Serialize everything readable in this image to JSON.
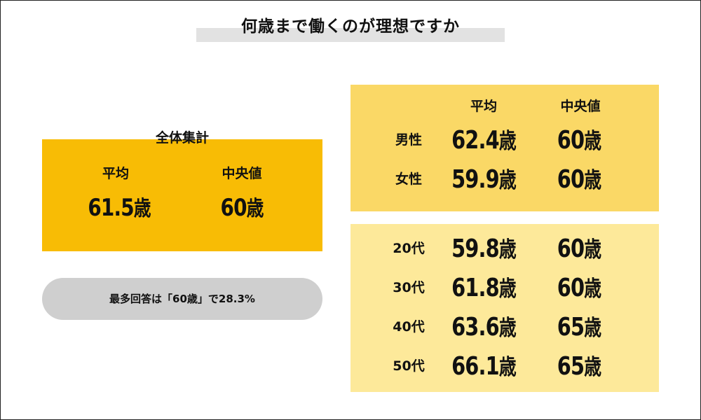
{
  "title": "何歳まで働くのが理想ですか",
  "overall": {
    "label": "全体集計",
    "mean_label": "平均",
    "median_label": "中央値",
    "mean_value": "61.5",
    "median_value": "60",
    "unit": "歳"
  },
  "most_common": "最多回答は「60歳」で28.3%",
  "gender": {
    "mean_label": "平均",
    "median_label": "中央値",
    "unit": "歳",
    "rows": [
      {
        "label": "男性",
        "mean": "62.4",
        "median": "60"
      },
      {
        "label": "女性",
        "mean": "59.9",
        "median": "60"
      }
    ]
  },
  "age": {
    "unit": "歳",
    "rows": [
      {
        "label": "20代",
        "mean": "59.8",
        "median": "60"
      },
      {
        "label": "30代",
        "mean": "61.8",
        "median": "60"
      },
      {
        "label": "40代",
        "mean": "63.6",
        "median": "65"
      },
      {
        "label": "50代",
        "mean": "66.1",
        "median": "65"
      }
    ]
  },
  "colors": {
    "overall_panel": "#f8bc05",
    "gender_panel": "#fad866",
    "age_panel": "#fde99a",
    "pill": "#cfcfcf",
    "title_highlight": "#e2e2e2"
  }
}
